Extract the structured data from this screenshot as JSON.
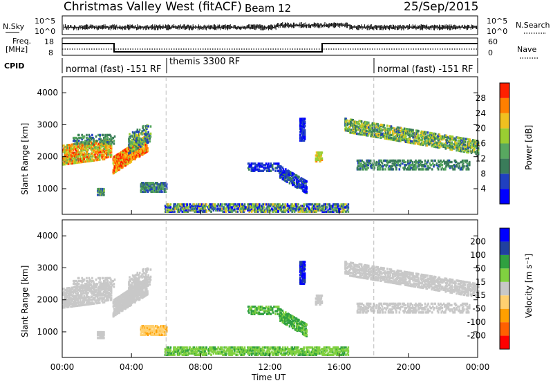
{
  "header": {
    "station": "Christmas Valley West (fitACF)",
    "beam": "Beam 12",
    "date": "25/Sep/2015"
  },
  "top_panels": {
    "nsky_label": "N.Sky",
    "nsky_ticks": [
      "10^5",
      "10^0"
    ],
    "nsearch_label": "N.Search",
    "nsearch_ticks": [
      "10^5",
      "10^0"
    ],
    "freq_label": "Freq.",
    "freq_unit": "[MHz]",
    "freq_ticks": [
      "18",
      "8"
    ],
    "nave_label": "Nave",
    "nave_ticks": [
      "60",
      "0"
    ],
    "cpid_label": "CPID",
    "cpid_segments": [
      {
        "label": "normal (fast) -151 RF",
        "start_h": 0,
        "end_h": 6
      },
      {
        "label": "themis 3300 RF",
        "start_h": 6,
        "end_h": 18
      },
      {
        "label": "normal (fast) -151 RF",
        "start_h": 18,
        "end_h": 24
      }
    ]
  },
  "chart_data": [
    {
      "type": "heatmap",
      "name": "power",
      "ylabel": "Slant Range [km]",
      "yticks": [
        "1000",
        "2000",
        "3000",
        "4000"
      ],
      "ylim": [
        200,
        4500
      ],
      "colorbar_label": "Power [dB]",
      "colorbar_ticks": [
        "4",
        "8",
        "12",
        "16",
        "20",
        "24",
        "28"
      ],
      "colors": [
        "#0000ff",
        "#2040c0",
        "#3a7c5a",
        "#58a860",
        "#9acd32",
        "#f0c020",
        "#ff7f00",
        "#ff2000"
      ]
    },
    {
      "type": "heatmap",
      "name": "velocity",
      "ylabel": "Slant Range [km]",
      "yticks": [
        "1000",
        "2000",
        "3000",
        "4000"
      ],
      "ylim": [
        200,
        4500
      ],
      "colorbar_label": "Velocity [m s⁻¹]",
      "colorbar_ticks": [
        "-200",
        "-100",
        "-50",
        "-15",
        "15",
        "50",
        "100",
        "200"
      ],
      "colors": [
        "#ff0000",
        "#ff6000",
        "#ffa000",
        "#ffd070",
        "#c8c8c8",
        "#80d040",
        "#30a040",
        "#2040a0",
        "#0000ff"
      ]
    }
  ],
  "xaxis": {
    "label": "Time UT",
    "ticks": [
      "00:00",
      "04:00",
      "08:00",
      "12:00",
      "16:00",
      "20:00",
      "00:00"
    ]
  }
}
